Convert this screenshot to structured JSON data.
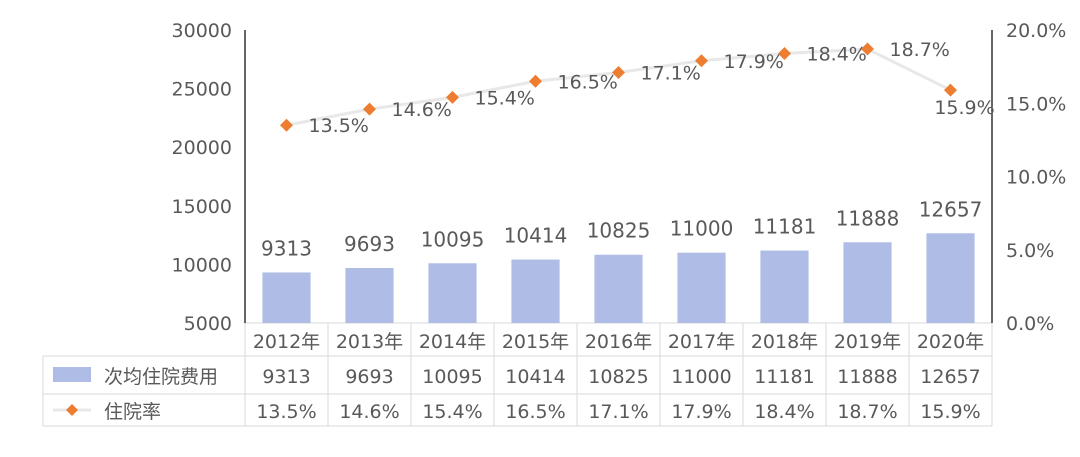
{
  "chart_data": {
    "type": "bar",
    "categories": [
      "2012年",
      "2013年",
      "2014年",
      "2015年",
      "2016年",
      "2017年",
      "2018年",
      "2019年",
      "2020年"
    ],
    "series": [
      {
        "name": "次均住院费用",
        "type": "bar",
        "axis": "left",
        "values": [
          9313,
          9693,
          10095,
          10414,
          10825,
          11000,
          11181,
          11888,
          12657
        ],
        "labels": [
          "9313",
          "9693",
          "10095",
          "10414",
          "10825",
          "11000",
          "11181",
          "11888",
          "12657"
        ]
      },
      {
        "name": "住院率",
        "type": "line",
        "axis": "right",
        "values": [
          13.5,
          14.6,
          15.4,
          16.5,
          17.1,
          17.9,
          18.4,
          18.7,
          15.9
        ],
        "labels": [
          "13.5%",
          "14.6%",
          "15.4%",
          "16.5%",
          "17.1%",
          "17.9%",
          "18.4%",
          "18.7%",
          "15.9%"
        ]
      }
    ],
    "ylim": [
      5000,
      30000
    ],
    "yticks": [
      "5000",
      "10000",
      "15000",
      "20000",
      "25000",
      "30000"
    ],
    "y2lim": [
      0,
      20
    ],
    "y2ticks": [
      "0.0%",
      "5.0%",
      "10.0%",
      "15.0%",
      "20.0%"
    ],
    "data_table": true,
    "colors": {
      "bar": "#AEBCE6",
      "marker": "#ED7D31",
      "line": "#E8E8E8",
      "grid": "#D9D9D9",
      "axis": "#000000",
      "text": "#595959"
    }
  }
}
